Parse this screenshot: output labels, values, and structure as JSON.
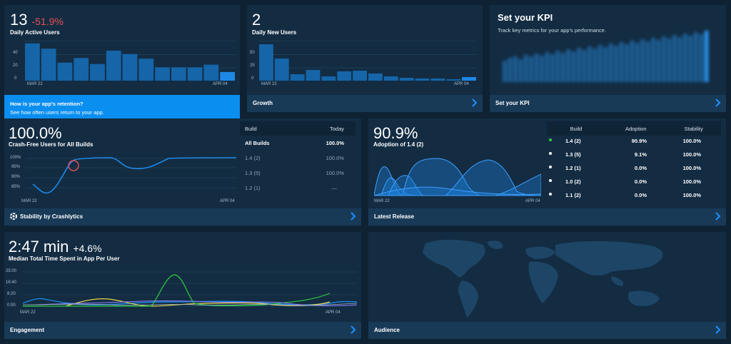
{
  "dau": {
    "value": "13",
    "delta": "-51.9%",
    "label": "Daily Active Users",
    "yticks": [
      "40",
      "20",
      "0"
    ],
    "x_start": "MAR 22",
    "x_end": "APR 04",
    "bars": [
      56,
      48,
      27,
      34,
      25,
      45,
      40,
      33,
      20,
      20,
      20,
      24,
      13
    ],
    "banner_title": "How is your app's retention?",
    "banner_text": "See how often users return to your app."
  },
  "dnu": {
    "value": "2",
    "label": "Daily New Users",
    "yticks": [
      "50",
      "25",
      "0"
    ],
    "x_start": "MAR 22",
    "x_end": "APR 04",
    "bars": [
      51,
      31,
      9,
      15,
      6,
      13,
      14,
      10,
      6,
      4,
      3,
      3,
      2,
      5
    ],
    "footer": "Growth"
  },
  "kpi": {
    "title": "Set your KPI",
    "text": "Track key metrics for your app's performance.",
    "footer": "Set your KPI"
  },
  "crash": {
    "value": "100.0%",
    "label": "Crash-Free Users for All Builds",
    "yticks": [
      "100%",
      "95%",
      "90%",
      "85%"
    ],
    "x_start": "MAR 22",
    "x_end": "APR 04",
    "footer": "Stability by Crashlytics",
    "table": {
      "headers": [
        "Build",
        "Today"
      ],
      "rows": [
        [
          "All Builds",
          "100.0%"
        ],
        [
          "1.4 (2)",
          "100.0%"
        ],
        [
          "1.3 (5)",
          "100.0%"
        ],
        [
          "1.2 (1)",
          "—"
        ]
      ]
    }
  },
  "adoption": {
    "value": "90.9%",
    "label": "Adoption of 1.4 (2)",
    "x_start": "MAR 22",
    "x_end": "APR 04",
    "footer": "Latest Release",
    "table": {
      "headers": [
        "Build",
        "Adoption",
        "Stability"
      ],
      "rows": [
        [
          "1.4 (2)",
          "90.9%",
          "100.0%"
        ],
        [
          "1.3 (5)",
          "9.1%",
          "100.0%"
        ],
        [
          "1.2 (1)",
          "0.0%",
          "100.0%"
        ],
        [
          "1.0 (2)",
          "0.0%",
          "100.0%"
        ],
        [
          "1.1 (2)",
          "0.0%",
          "100.0%"
        ]
      ]
    }
  },
  "engagement": {
    "value": "2:47 min",
    "delta": "+4.6%",
    "label": "Median Total Time Spent in App Per User",
    "yticks": [
      "25:00",
      "16:40",
      "8:20",
      "0:00"
    ],
    "x_start": "MAR 22",
    "x_end": "APR 04",
    "footer": "Engagement"
  },
  "audience": {
    "footer": "Audience"
  },
  "colors": {
    "accent": "#1e88e5",
    "card": "#132c42",
    "footer": "#183a57",
    "negative": "#e9505a"
  }
}
